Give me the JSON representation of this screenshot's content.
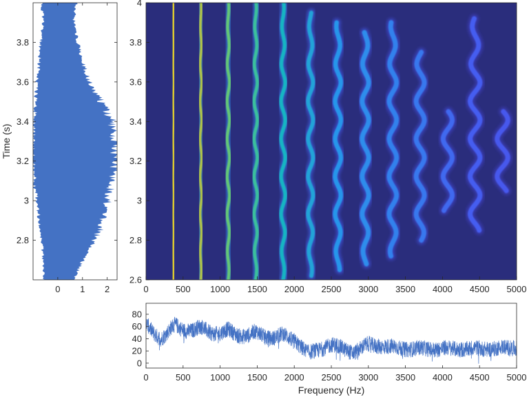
{
  "chart_data": [
    {
      "id": "waveform",
      "type": "area",
      "ylabel": "Time  (s)",
      "xlim": [
        -1,
        2.4
      ],
      "ylim": [
        2.6,
        4.0
      ],
      "xticks": [
        0,
        1,
        2
      ],
      "yticks": [
        2.8,
        3,
        3.2,
        3.4,
        3.6,
        3.8
      ],
      "ytick_labels": [
        "2.8",
        "3",
        "3.2",
        "3.4",
        "3.6",
        "3.8"
      ],
      "fill_color": "#4472c4",
      "envelope": {
        "t": [
          2.6,
          2.7,
          2.8,
          2.9,
          3.0,
          3.1,
          3.2,
          3.3,
          3.4,
          3.5,
          3.6,
          3.7,
          3.8,
          3.9,
          4.0
        ],
        "left": [
          -0.55,
          -0.6,
          -0.65,
          -0.75,
          -0.85,
          -0.95,
          -1.0,
          -1.0,
          -0.95,
          -0.9,
          -0.85,
          -0.75,
          -0.7,
          -0.6,
          -0.65
        ],
        "right": [
          0.65,
          1.0,
          1.5,
          1.85,
          2.0,
          2.2,
          2.35,
          2.3,
          2.2,
          1.75,
          1.3,
          1.0,
          0.8,
          0.65,
          0.75
        ]
      }
    },
    {
      "id": "spectrogram",
      "type": "heatmap",
      "xlim": [
        0,
        5000
      ],
      "ylim": [
        2.6,
        4.0
      ],
      "xticks": [
        0,
        500,
        1000,
        1500,
        2000,
        2500,
        3000,
        3500,
        4000,
        4500,
        5000
      ],
      "yticks": [
        2.6,
        2.8,
        3,
        3.2,
        3.4,
        3.6,
        3.8,
        4
      ],
      "ytick_labels": [
        "2.6",
        "2.8",
        "3",
        "3.2",
        "3.4",
        "3.6",
        "3.8",
        "4"
      ],
      "background_color": "#2a2d7c",
      "fundamental_hz": 370,
      "vibrato_period_s": 0.19,
      "harmonics": [
        {
          "n": 1,
          "amp": 0.95,
          "t_start": 2.6,
          "t_end": 4.0
        },
        {
          "n": 2,
          "amp": 0.85,
          "t_start": 2.6,
          "t_end": 4.0
        },
        {
          "n": 3,
          "amp": 0.75,
          "t_start": 2.6,
          "t_end": 4.0
        },
        {
          "n": 4,
          "amp": 0.68,
          "t_start": 2.6,
          "t_end": 4.0
        },
        {
          "n": 5,
          "amp": 0.6,
          "t_start": 2.6,
          "t_end": 4.0
        },
        {
          "n": 6,
          "amp": 0.52,
          "t_start": 2.62,
          "t_end": 3.95
        },
        {
          "n": 7,
          "amp": 0.45,
          "t_start": 2.65,
          "t_end": 3.9
        },
        {
          "n": 8,
          "amp": 0.42,
          "t_start": 2.68,
          "t_end": 3.85
        },
        {
          "n": 9,
          "amp": 0.38,
          "t_start": 2.72,
          "t_end": 3.9
        },
        {
          "n": 10,
          "amp": 0.35,
          "t_start": 2.8,
          "t_end": 3.75
        },
        {
          "n": 11,
          "amp": 0.3,
          "t_start": 2.95,
          "t_end": 3.45
        },
        {
          "n": 12,
          "amp": 0.26,
          "t_start": 2.85,
          "t_end": 3.92
        },
        {
          "n": 13,
          "amp": 0.24,
          "t_start": 3.05,
          "t_end": 3.45
        },
        {
          "n": 14,
          "amp": 0.24,
          "t_start": 3.0,
          "t_end": 3.4
        }
      ]
    },
    {
      "id": "spectrum",
      "type": "line",
      "xlabel": "Frequency (Hz)",
      "xlim": [
        0,
        5000
      ],
      "ylim": [
        -8,
        98
      ],
      "xticks": [
        0,
        500,
        1000,
        1500,
        2000,
        2500,
        3000,
        3500,
        4000,
        4500,
        5000
      ],
      "yticks": [
        0,
        20,
        40,
        60,
        80
      ],
      "line_color": "#4472c4",
      "peak_hz": 370,
      "envelope": {
        "f": [
          0,
          200,
          400,
          800,
          1200,
          1600,
          2000,
          2200,
          2500,
          2800,
          3000,
          3500,
          4000,
          4500,
          5000
        ],
        "level": [
          60,
          45,
          60,
          55,
          50,
          47,
          42,
          20,
          35,
          22,
          35,
          28,
          28,
          28,
          30
        ]
      }
    }
  ]
}
